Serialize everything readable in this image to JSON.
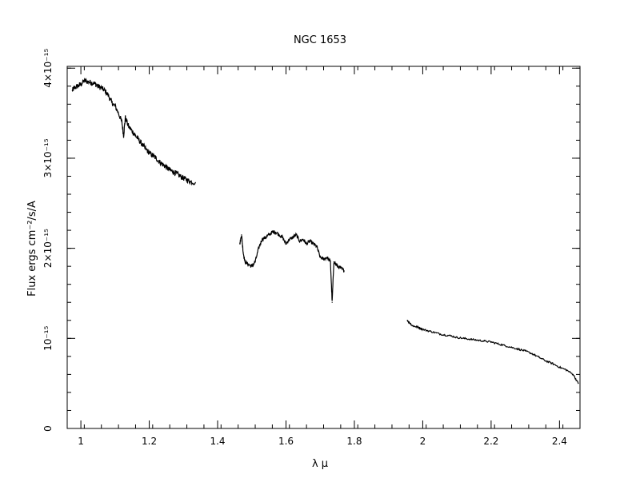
{
  "chart_data": {
    "type": "line",
    "title": "NGC 1653",
    "xlabel": "λ μ",
    "ylabel": "Flux ergs cm⁻²/s/A",
    "xlim": [
      0.96,
      2.46
    ],
    "ylim": [
      0,
      4.02e-15
    ],
    "grid": false,
    "legend": "none",
    "color": "#000000",
    "x_ticks": [
      {
        "value": 1.0,
        "label": "1"
      },
      {
        "value": 1.2,
        "label": "1.2"
      },
      {
        "value": 1.4,
        "label": "1.4"
      },
      {
        "value": 1.6,
        "label": "1.6"
      },
      {
        "value": 1.8,
        "label": "1.8"
      },
      {
        "value": 2.0,
        "label": "2"
      },
      {
        "value": 2.2,
        "label": "2.2"
      },
      {
        "value": 2.4,
        "label": "2.4"
      }
    ],
    "y_ticks": [
      {
        "value": 0,
        "label": "0"
      },
      {
        "value": 1e-15,
        "label": "10⁻¹⁵"
      },
      {
        "value": 2e-15,
        "label": "2×10⁻¹⁵"
      },
      {
        "value": 3e-15,
        "label": "3×10⁻¹⁵"
      },
      {
        "value": 4e-15,
        "label": "4×10⁻¹⁵"
      }
    ],
    "segments": [
      {
        "x": [
          0.975,
          0.98,
          0.99,
          1.0,
          1.01,
          1.02,
          1.03,
          1.04,
          1.05,
          1.06,
          1.07,
          1.08,
          1.09,
          1.1,
          1.11,
          1.12,
          1.125,
          1.13,
          1.14,
          1.15,
          1.16,
          1.17,
          1.18,
          1.19,
          1.2,
          1.21,
          1.22,
          1.23,
          1.24,
          1.25,
          1.26,
          1.27,
          1.28,
          1.29,
          1.3,
          1.31,
          1.32,
          1.335
        ],
        "y": [
          3.75e-15,
          3.78e-15,
          3.8e-15,
          3.82e-15,
          3.86e-15,
          3.85e-15,
          3.84e-15,
          3.83e-15,
          3.8e-15,
          3.78e-15,
          3.75e-15,
          3.7e-15,
          3.62e-15,
          3.58e-15,
          3.5e-15,
          3.4e-15,
          3.25e-15,
          3.45e-15,
          3.35e-15,
          3.3e-15,
          3.25e-15,
          3.2e-15,
          3.15e-15,
          3.1e-15,
          3.06e-15,
          3.03e-15,
          3e-15,
          2.96e-15,
          2.93e-15,
          2.9e-15,
          2.87e-15,
          2.85e-15,
          2.83e-15,
          2.8e-15,
          2.78e-15,
          2.76e-15,
          2.74e-15,
          2.73e-15
        ]
      },
      {
        "x": [
          1.465,
          1.47,
          1.475,
          1.48,
          1.49,
          1.5,
          1.51,
          1.52,
          1.53,
          1.54,
          1.55,
          1.56,
          1.57,
          1.58,
          1.59,
          1.6,
          1.61,
          1.62,
          1.63,
          1.64,
          1.65,
          1.66,
          1.67,
          1.68,
          1.69,
          1.7,
          1.71,
          1.72,
          1.73,
          1.735,
          1.74,
          1.75,
          1.76,
          1.77
        ],
        "y": [
          2.05e-15,
          2.15e-15,
          1.95e-15,
          1.85e-15,
          1.82e-15,
          1.8e-15,
          1.85e-15,
          2e-15,
          2.1e-15,
          2.12e-15,
          2.15e-15,
          2.18e-15,
          2.18e-15,
          2.15e-15,
          2.12e-15,
          2.05e-15,
          2.1e-15,
          2.12e-15,
          2.15e-15,
          2.08e-15,
          2.1e-15,
          2.05e-15,
          2.08e-15,
          2.05e-15,
          2.02e-15,
          1.9e-15,
          1.88e-15,
          1.9e-15,
          1.85e-15,
          1.4e-15,
          1.85e-15,
          1.8e-15,
          1.78e-15,
          1.75e-15
        ]
      },
      {
        "x": [
          1.955,
          1.96,
          1.97,
          1.98,
          1.99,
          2.0,
          2.02,
          2.04,
          2.06,
          2.08,
          2.1,
          2.12,
          2.14,
          2.16,
          2.18,
          2.2,
          2.22,
          2.24,
          2.26,
          2.28,
          2.3,
          2.32,
          2.34,
          2.36,
          2.38,
          2.4,
          2.42,
          2.44,
          2.455
        ],
        "y": [
          1.2e-15,
          1.18e-15,
          1.14e-15,
          1.13e-15,
          1.12e-15,
          1.1e-15,
          1.08e-15,
          1.06e-15,
          1.04e-15,
          1.03e-15,
          1.01e-15,
          1e-15,
          9.9e-16,
          9.8e-16,
          9.7e-16,
          9.6e-16,
          9.4e-16,
          9.2e-16,
          9e-16,
          8.8e-16,
          8.6e-16,
          8.3e-16,
          7.9e-16,
          7.5e-16,
          7.2e-16,
          6.8e-16,
          6.5e-16,
          6e-16,
          5e-16
        ]
      }
    ]
  }
}
